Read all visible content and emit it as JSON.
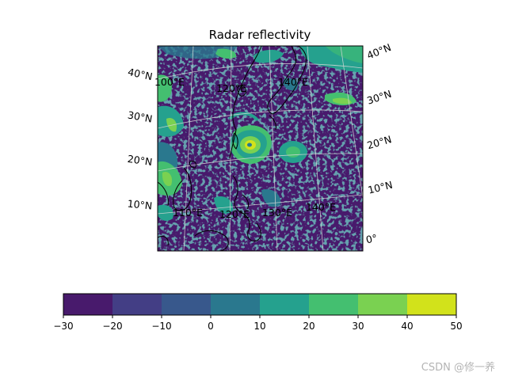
{
  "title": "Radar reflectivity",
  "map": {
    "projection": "lambert-conformal",
    "region": "West Pacific / East Asia",
    "features": [
      "coastlines",
      "gridlines"
    ],
    "lat_labels_left": [
      "40°N",
      "30°N",
      "20°N",
      "10°N"
    ],
    "lat_labels_right": [
      "40°N",
      "30°N",
      "20°N",
      "10°N",
      "0°"
    ],
    "lon_labels_top": [
      "100°E",
      "120°E",
      "140°E"
    ],
    "lon_labels_bottom": [
      "110°E",
      "120°E",
      "130°E",
      "140°E"
    ],
    "feature_shown": "tropical cyclone east of Taiwan"
  },
  "colorbar": {
    "levels": [
      -30,
      -20,
      -10,
      0,
      10,
      20,
      30,
      40,
      50
    ],
    "tick_labels": [
      "−30",
      "−20",
      "−10",
      "0",
      "10",
      "20",
      "30",
      "40",
      "50"
    ],
    "colors": [
      "#481a6c",
      "#433e85",
      "#38588c",
      "#2a788e",
      "#25a18e",
      "#44bf70",
      "#7ad151",
      "#d2e21b"
    ],
    "colormap": "viridis"
  },
  "watermark": "CSDN @修一养"
}
